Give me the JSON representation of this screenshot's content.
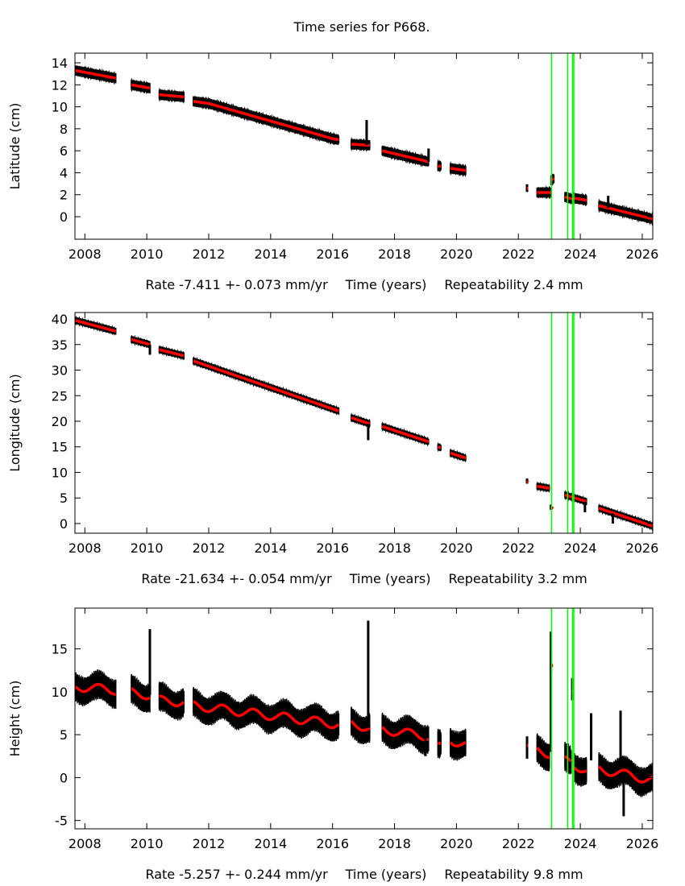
{
  "chart_data": {
    "title": "Time series for P668.",
    "type": "scatter",
    "colors": {
      "data": "#000000",
      "model": "#ff0000",
      "events": "#00ff00"
    },
    "xlim": [
      2007.68,
      2026.34
    ],
    "xticks": [
      2008,
      2010,
      2012,
      2014,
      2016,
      2018,
      2020,
      2022,
      2024,
      2026
    ],
    "event_lines": [
      2023.07,
      2023.59,
      2023.75,
      2023.79
    ],
    "panels": [
      {
        "ylabel": "Latitude (cm)",
        "rate": "Rate -7.411 +- 0.073 mm/yr",
        "xlabel": "Time (years)",
        "repeatability": "Repeatability 2.4 mm",
        "ylim": [
          -2.05,
          14.88
        ],
        "yticks": [
          0,
          2,
          4,
          6,
          8,
          10,
          12,
          14
        ],
        "scatter": 0.35,
        "annual": 0,
        "segments": [
          [
            [
              2007.7,
              13.3
            ],
            [
              2009.0,
              12.6
            ]
          ],
          [
            [
              2009.5,
              12.0
            ],
            [
              2010.1,
              11.7
            ]
          ],
          [
            [
              2010.4,
              11.1
            ],
            [
              2011.2,
              10.9
            ]
          ],
          [
            [
              2011.5,
              10.5
            ],
            [
              2012,
              10.3
            ],
            [
              2014,
              8.7
            ],
            [
              2016,
              7.1
            ],
            [
              2016.2,
              7.0
            ]
          ],
          [
            [
              2016.6,
              6.6
            ],
            [
              2017.2,
              6.5
            ]
          ],
          [
            [
              2017.6,
              6.0
            ],
            [
              2019.1,
              5.0
            ]
          ],
          [
            [
              2019.4,
              4.6
            ],
            [
              2019.5,
              4.6
            ]
          ],
          [
            [
              2019.8,
              4.4
            ],
            [
              2020.3,
              4.2
            ]
          ],
          [
            [
              2022.28,
              2.6
            ],
            [
              2022.32,
              2.6
            ]
          ],
          [
            [
              2022.6,
              2.2
            ],
            [
              2023.05,
              2.2
            ]
          ],
          [
            [
              2023.05,
              3.3
            ],
            [
              2023.15,
              3.5
            ]
          ],
          [
            [
              2023.5,
              1.8
            ],
            [
              2023.75,
              1.6
            ]
          ],
          [
            [
              2023.77,
              1.7
            ],
            [
              2024.2,
              1.5
            ]
          ],
          [
            [
              2024.6,
              1.0
            ],
            [
              2026.34,
              -0.2
            ]
          ]
        ],
        "excursions": [
          [
            2017.1,
            6.5,
            8.8
          ],
          [
            2024.9,
            0.8,
            1.9
          ],
          [
            2019.1,
            5.0,
            6.2
          ]
        ]
      },
      {
        "ylabel": "Longitude (cm)",
        "rate": "Rate -21.634 +- 0.054 mm/yr",
        "xlabel": "Time (years)",
        "repeatability": "Repeatability 3.2 mm",
        "ylim": [
          -1.89,
          41.26
        ],
        "yticks": [
          0,
          5,
          10,
          15,
          20,
          25,
          30,
          35,
          40
        ],
        "scatter": 0.5,
        "annual": 0,
        "segments": [
          [
            [
              2007.7,
              39.7
            ],
            [
              2009.0,
              37.6
            ]
          ],
          [
            [
              2009.5,
              36.0
            ],
            [
              2010.1,
              35.0
            ]
          ],
          [
            [
              2010.4,
              34.0
            ],
            [
              2011.2,
              32.8
            ]
          ],
          [
            [
              2011.5,
              31.8
            ],
            [
              2016.2,
              22.0
            ]
          ],
          [
            [
              2016.6,
              20.7
            ],
            [
              2017.2,
              19.5
            ]
          ],
          [
            [
              2017.6,
              19.0
            ],
            [
              2019.1,
              16.0
            ]
          ],
          [
            [
              2019.4,
              15.0
            ],
            [
              2019.5,
              14.8
            ]
          ],
          [
            [
              2019.8,
              13.8
            ],
            [
              2020.3,
              12.8
            ]
          ],
          [
            [
              2022.28,
              8.3
            ],
            [
              2022.32,
              8.1
            ]
          ],
          [
            [
              2022.6,
              7.3
            ],
            [
              2023.0,
              6.9
            ]
          ],
          [
            [
              2023.05,
              3.2
            ],
            [
              2023.12,
              2.9
            ]
          ],
          [
            [
              2023.5,
              5.6
            ],
            [
              2024.2,
              4.3
            ]
          ],
          [
            [
              2024.6,
              3.0
            ],
            [
              2026.34,
              -0.5
            ]
          ]
        ],
        "excursions": [
          [
            2010.1,
            35.0,
            33.0
          ],
          [
            2017.15,
            19.5,
            16.3
          ],
          [
            2025.05,
            2.0,
            0.0
          ],
          [
            2024.15,
            4.3,
            2.2
          ]
        ]
      },
      {
        "ylabel": "Height (cm)",
        "rate": "Rate -5.257 +- 0.244 mm/yr",
        "xlabel": "Time (years)",
        "repeatability": "Repeatability 9.8 mm",
        "ylim": [
          -5.97,
          19.75
        ],
        "yticks": [
          -5,
          0,
          5,
          10,
          15
        ],
        "scatter": 1.3,
        "annual": 0.5,
        "segments": [
          [
            [
              2007.7,
              10.6
            ],
            [
              2009.0,
              10.2
            ]
          ],
          [
            [
              2009.5,
              9.9
            ],
            [
              2010.1,
              9.6
            ]
          ],
          [
            [
              2010.4,
              9.0
            ],
            [
              2011.2,
              8.8
            ]
          ],
          [
            [
              2011.5,
              8.4
            ],
            [
              2016.2,
              6.2
            ]
          ],
          [
            [
              2016.6,
              6.3
            ],
            [
              2017.2,
              5.8
            ]
          ],
          [
            [
              2017.6,
              5.6
            ],
            [
              2019.1,
              4.8
            ]
          ],
          [
            [
              2019.4,
              3.5
            ],
            [
              2019.5,
              3.5
            ]
          ],
          [
            [
              2019.8,
              4.4
            ],
            [
              2020.3,
              3.8
            ]
          ],
          [
            [
              2022.28,
              3.5
            ],
            [
              2022.32,
              3.4
            ]
          ],
          [
            [
              2022.6,
              3.2
            ],
            [
              2023.0,
              2.8
            ]
          ],
          [
            [
              2023.05,
              13.5
            ],
            [
              2023.12,
              13.3
            ]
          ],
          [
            [
              2023.5,
              2.0
            ],
            [
              2023.7,
              1.9
            ]
          ],
          [
            [
              2023.74,
              10.3
            ],
            [
              2023.78,
              10.2
            ]
          ],
          [
            [
              2023.8,
              1.5
            ],
            [
              2024.2,
              0.8
            ]
          ],
          [
            [
              2024.6,
              1.0
            ],
            [
              2026.34,
              -0.3
            ]
          ]
        ],
        "excursions": [
          [
            2010.1,
            9.6,
            17.3
          ],
          [
            2017.15,
            5.8,
            18.3
          ],
          [
            2023.05,
            3.0,
            17.0
          ],
          [
            2024.35,
            2.0,
            7.5
          ],
          [
            2025.3,
            2.0,
            7.8
          ],
          [
            2019.0,
            4.8,
            2.5
          ],
          [
            2025.4,
            0.0,
            -4.5
          ]
        ]
      }
    ]
  }
}
